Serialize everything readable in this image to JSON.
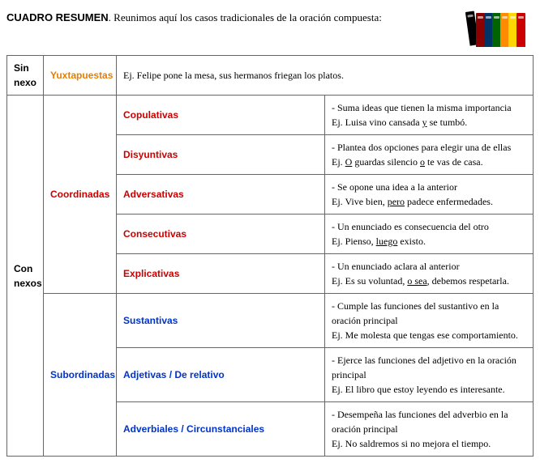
{
  "header": {
    "title_bold": "CUADRO RESUMEN",
    "title_rest": ". Reunimos aquí los casos tradicionales de la oración compuesta:"
  },
  "colors": {
    "orange": "#e67e00",
    "red": "#cc0000",
    "blue": "#0033cc",
    "border": "#666666",
    "text": "#000000",
    "background": "#ffffff"
  },
  "table": {
    "sin_nexo": {
      "label": "Sin nexo",
      "category": "Yuxtapuestas",
      "desc": "Ej. Felipe pone la mesa, sus hermanos friegan los platos."
    },
    "con_nexos": {
      "label": "Con nexos",
      "coordinadas": {
        "label": "Coordinadas",
        "rows": [
          {
            "sub": "Copulativas",
            "line1": "- Suma ideas que tienen la misma importancia",
            "line2_pre": "Ej. Luisa vino cansada ",
            "line2_u": "y",
            "line2_post": " se tumbó."
          },
          {
            "sub": "Disyuntivas",
            "line1": "- Plantea dos opciones para elegir una de ellas",
            "line2_pre": "Ej. ",
            "line2_u": "O",
            "line2_mid": " guardas silencio ",
            "line2_u2": "o",
            "line2_post": " te vas de casa."
          },
          {
            "sub": "Adversativas",
            "line1": "- Se opone una idea a la anterior",
            "line2_pre": "Ej. Vive bien, ",
            "line2_u": "pero",
            "line2_post": " padece enfermedades."
          },
          {
            "sub": "Consecutivas",
            "line1": "- Un enunciado es consecuencia del otro",
            "line2_pre": "Ej. Pienso, ",
            "line2_u": "luego",
            "line2_post": " existo."
          },
          {
            "sub": "Explicativas",
            "line1": "- Un enunciado aclara al anterior",
            "line2_pre": "Ej. Es su voluntad, ",
            "line2_u": "o sea",
            "line2_post": ", debemos respetarla."
          }
        ]
      },
      "subordinadas": {
        "label": "Subordinadas",
        "rows": [
          {
            "sub": "Sustantivas",
            "line1": "- Cumple las funciones del sustantivo en la oración principal",
            "line2": "Ej. Me molesta que tengas ese comportamiento."
          },
          {
            "sub": "Adjetivas / De relativo",
            "line1": "- Ejerce las funciones del adjetivo en la oración principal",
            "line2": "Ej. El libro que estoy leyendo es interesante."
          },
          {
            "sub": "Adverbiales / Circunstanciales",
            "line1": "- Desempeña las funciones del adverbio en la oración principal",
            "line2": "Ej. No saldremos si no mejora el tiempo."
          }
        ]
      }
    }
  }
}
